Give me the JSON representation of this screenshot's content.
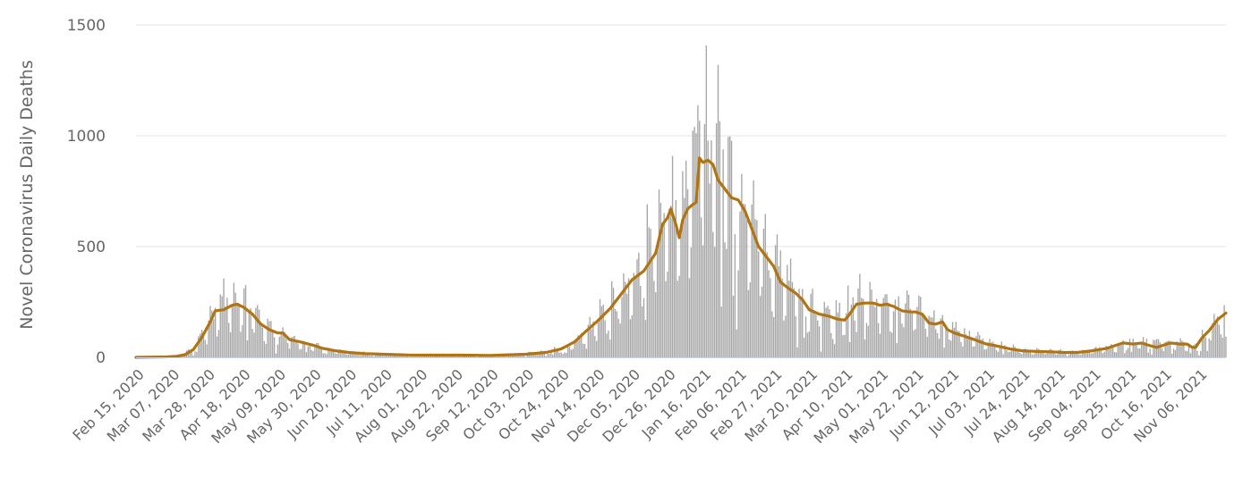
{
  "chart_data": {
    "type": "bar",
    "title": "",
    "xlabel": "",
    "ylabel": "Novel Coronavirus Daily Deaths",
    "ylim": [
      0,
      1500
    ],
    "y_ticks": [
      0,
      500,
      1000,
      1500
    ],
    "grid": "horizontal",
    "x_range": [
      "2020-02-15",
      "2021-11-22"
    ],
    "x_tick_labels": [
      "Feb 15, 2020",
      "Mar 07, 2020",
      "Mar 28, 2020",
      "Apr 18, 2020",
      "May 09, 2020",
      "May 30, 2020",
      "Jun 20, 2020",
      "Jul 11, 2020",
      "Aug 01, 2020",
      "Aug 22, 2020",
      "Sep 12, 2020",
      "Oct 03, 2020",
      "Oct 24, 2020",
      "Nov 14, 2020",
      "Dec 05, 2020",
      "Dec 26, 2020",
      "Jan 16, 2021",
      "Feb 06, 2021",
      "Feb 27, 2021",
      "Mar 20, 2021",
      "Apr 10, 2021",
      "May 01, 2021",
      "May 22, 2021",
      "Jun 12, 2021",
      "Jul 03, 2021",
      "Jul 24, 2021",
      "Aug 14, 2021",
      "Sep 04, 2021",
      "Sep 25, 2021",
      "Oct 16, 2021",
      "Nov 06, 2021"
    ],
    "colors": {
      "bars": "#a6a6a6",
      "line": "#b07412",
      "grid": "#e6e6e6",
      "axis": "#ccd6eb",
      "text": "#666666"
    },
    "series": [
      {
        "kind": "bars",
        "description_points": [
          [
            "2020-02-15",
            0
          ],
          [
            "2020-03-04",
            2
          ],
          [
            "2020-03-10",
            5
          ],
          [
            "2020-03-15",
            15
          ],
          [
            "2020-03-20",
            45
          ],
          [
            "2020-03-25",
            100
          ],
          [
            "2020-03-30",
            160
          ],
          [
            "2020-04-04",
            210
          ],
          [
            "2020-04-09",
            250
          ],
          [
            "2020-04-14",
            255
          ],
          [
            "2020-04-19",
            240
          ],
          [
            "2020-04-24",
            200
          ],
          [
            "2020-04-29",
            150
          ],
          [
            "2020-05-04",
            120
          ],
          [
            "2020-05-09",
            100
          ],
          [
            "2020-05-14",
            95
          ],
          [
            "2020-05-19",
            75
          ],
          [
            "2020-05-24",
            60
          ],
          [
            "2020-05-30",
            50
          ],
          [
            "2020-06-05",
            38
          ],
          [
            "2020-06-12",
            28
          ],
          [
            "2020-06-20",
            22
          ],
          [
            "2020-06-30",
            17
          ],
          [
            "2020-07-11",
            13
          ],
          [
            "2020-07-25",
            11
          ],
          [
            "2020-08-10",
            10
          ],
          [
            "2020-08-25",
            10
          ],
          [
            "2020-09-12",
            9
          ],
          [
            "2020-09-25",
            12
          ],
          [
            "2020-10-03",
            15
          ],
          [
            "2020-10-15",
            22
          ],
          [
            "2020-10-24",
            40
          ],
          [
            "2020-11-01",
            70
          ],
          [
            "2020-11-08",
            110
          ],
          [
            "2020-11-14",
            160
          ],
          [
            "2020-11-22",
            210
          ],
          [
            "2020-11-30",
            270
          ],
          [
            "2020-12-05",
            320
          ],
          [
            "2020-12-12",
            400
          ],
          [
            "2020-12-19",
            490
          ],
          [
            "2020-12-26",
            580
          ],
          [
            "2020-12-31",
            640
          ],
          [
            "2021-01-04",
            640
          ],
          [
            "2021-01-08",
            720
          ],
          [
            "2021-01-13",
            900
          ],
          [
            "2021-01-17",
            900
          ],
          [
            "2021-01-22",
            860
          ],
          [
            "2021-01-27",
            790
          ],
          [
            "2021-02-01",
            730
          ],
          [
            "2021-02-06",
            700
          ],
          [
            "2021-02-12",
            640
          ],
          [
            "2021-02-18",
            520
          ],
          [
            "2021-02-23",
            460
          ],
          [
            "2021-02-27",
            420
          ],
          [
            "2021-03-05",
            350
          ],
          [
            "2021-03-12",
            280
          ],
          [
            "2021-03-20",
            220
          ],
          [
            "2021-03-28",
            190
          ],
          [
            "2021-04-04",
            175
          ],
          [
            "2021-04-10",
            195
          ],
          [
            "2021-04-17",
            240
          ],
          [
            "2021-04-24",
            250
          ],
          [
            "2021-05-01",
            245
          ],
          [
            "2021-05-08",
            225
          ],
          [
            "2021-05-15",
            205
          ],
          [
            "2021-05-22",
            195
          ],
          [
            "2021-05-29",
            175
          ],
          [
            "2021-06-05",
            150
          ],
          [
            "2021-06-12",
            130
          ],
          [
            "2021-06-20",
            100
          ],
          [
            "2021-06-28",
            80
          ],
          [
            "2021-07-03",
            65
          ],
          [
            "2021-07-12",
            45
          ],
          [
            "2021-07-20",
            35
          ],
          [
            "2021-07-28",
            30
          ],
          [
            "2021-08-07",
            27
          ],
          [
            "2021-08-14",
            25
          ],
          [
            "2021-08-22",
            22
          ],
          [
            "2021-08-30",
            25
          ],
          [
            "2021-09-04",
            30
          ],
          [
            "2021-09-12",
            40
          ],
          [
            "2021-09-20",
            55
          ],
          [
            "2021-09-25",
            65
          ],
          [
            "2021-10-03",
            68
          ],
          [
            "2021-10-10",
            65
          ],
          [
            "2021-10-16",
            60
          ],
          [
            "2021-10-24",
            55
          ],
          [
            "2021-10-30",
            65
          ],
          [
            "2021-11-03",
            45
          ],
          [
            "2021-11-06",
            70
          ],
          [
            "2021-11-12",
            120
          ],
          [
            "2021-11-17",
            170
          ],
          [
            "2021-11-22",
            200
          ]
        ]
      },
      {
        "kind": "line",
        "points": [
          [
            "2020-02-15",
            0
          ],
          [
            "2020-03-04",
            2
          ],
          [
            "2020-03-10",
            5
          ],
          [
            "2020-03-15",
            12
          ],
          [
            "2020-03-20",
            35
          ],
          [
            "2020-03-25",
            90
          ],
          [
            "2020-03-30",
            160
          ],
          [
            "2020-04-02",
            210
          ],
          [
            "2020-04-07",
            215
          ],
          [
            "2020-04-12",
            235
          ],
          [
            "2020-04-15",
            240
          ],
          [
            "2020-04-19",
            225
          ],
          [
            "2020-04-24",
            195
          ],
          [
            "2020-04-29",
            150
          ],
          [
            "2020-05-04",
            125
          ],
          [
            "2020-05-09",
            110
          ],
          [
            "2020-05-12",
            110
          ],
          [
            "2020-05-16",
            80
          ],
          [
            "2020-05-22",
            70
          ],
          [
            "2020-05-30",
            55
          ],
          [
            "2020-06-05",
            40
          ],
          [
            "2020-06-12",
            30
          ],
          [
            "2020-06-20",
            22
          ],
          [
            "2020-06-30",
            17
          ],
          [
            "2020-07-11",
            14
          ],
          [
            "2020-07-25",
            11
          ],
          [
            "2020-08-10",
            10
          ],
          [
            "2020-08-25",
            10
          ],
          [
            "2020-09-12",
            9
          ],
          [
            "2020-09-25",
            12
          ],
          [
            "2020-10-03",
            14
          ],
          [
            "2020-10-15",
            22
          ],
          [
            "2020-10-24",
            38
          ],
          [
            "2020-11-01",
            70
          ],
          [
            "2020-11-08",
            120
          ],
          [
            "2020-11-14",
            160
          ],
          [
            "2020-11-22",
            220
          ],
          [
            "2020-11-30",
            300
          ],
          [
            "2020-12-05",
            350
          ],
          [
            "2020-12-12",
            390
          ],
          [
            "2020-12-19",
            470
          ],
          [
            "2020-12-23",
            600
          ],
          [
            "2020-12-26",
            630
          ],
          [
            "2020-12-28",
            670
          ],
          [
            "2020-12-31",
            600
          ],
          [
            "2021-01-02",
            540
          ],
          [
            "2021-01-04",
            620
          ],
          [
            "2021-01-07",
            670
          ],
          [
            "2021-01-10",
            690
          ],
          [
            "2021-01-12",
            700
          ],
          [
            "2021-01-14",
            900
          ],
          [
            "2021-01-16",
            880
          ],
          [
            "2021-01-19",
            890
          ],
          [
            "2021-01-22",
            870
          ],
          [
            "2021-01-25",
            800
          ],
          [
            "2021-01-29",
            760
          ],
          [
            "2021-02-02",
            720
          ],
          [
            "2021-02-06",
            710
          ],
          [
            "2021-02-10",
            660
          ],
          [
            "2021-02-14",
            580
          ],
          [
            "2021-02-18",
            500
          ],
          [
            "2021-02-23",
            450
          ],
          [
            "2021-02-27",
            410
          ],
          [
            "2021-03-03",
            340
          ],
          [
            "2021-03-08",
            310
          ],
          [
            "2021-03-12",
            290
          ],
          [
            "2021-03-16",
            260
          ],
          [
            "2021-03-20",
            215
          ],
          [
            "2021-03-26",
            195
          ],
          [
            "2021-04-01",
            185
          ],
          [
            "2021-04-06",
            172
          ],
          [
            "2021-04-10",
            168
          ],
          [
            "2021-04-12",
            185
          ],
          [
            "2021-04-17",
            240
          ],
          [
            "2021-04-22",
            245
          ],
          [
            "2021-04-27",
            245
          ],
          [
            "2021-05-01",
            235
          ],
          [
            "2021-05-05",
            240
          ],
          [
            "2021-05-09",
            230
          ],
          [
            "2021-05-14",
            210
          ],
          [
            "2021-05-19",
            205
          ],
          [
            "2021-05-22",
            205
          ],
          [
            "2021-05-26",
            195
          ],
          [
            "2021-05-30",
            155
          ],
          [
            "2021-06-03",
            150
          ],
          [
            "2021-06-07",
            160
          ],
          [
            "2021-06-10",
            125
          ],
          [
            "2021-06-14",
            110
          ],
          [
            "2021-06-20",
            95
          ],
          [
            "2021-06-26",
            80
          ],
          [
            "2021-07-03",
            60
          ],
          [
            "2021-07-10",
            50
          ],
          [
            "2021-07-17",
            38
          ],
          [
            "2021-07-24",
            30
          ],
          [
            "2021-08-01",
            27
          ],
          [
            "2021-08-10",
            25
          ],
          [
            "2021-08-18",
            22
          ],
          [
            "2021-08-26",
            22
          ],
          [
            "2021-09-04",
            30
          ],
          [
            "2021-09-12",
            40
          ],
          [
            "2021-09-18",
            55
          ],
          [
            "2021-09-22",
            65
          ],
          [
            "2021-09-28",
            60
          ],
          [
            "2021-10-03",
            65
          ],
          [
            "2021-10-07",
            55
          ],
          [
            "2021-10-12",
            45
          ],
          [
            "2021-10-16",
            55
          ],
          [
            "2021-10-20",
            65
          ],
          [
            "2021-10-26",
            60
          ],
          [
            "2021-10-30",
            60
          ],
          [
            "2021-11-02",
            45
          ],
          [
            "2021-11-04",
            45
          ],
          [
            "2021-11-08",
            90
          ],
          [
            "2021-11-12",
            120
          ],
          [
            "2021-11-17",
            170
          ],
          [
            "2021-11-22",
            200
          ]
        ]
      }
    ]
  }
}
